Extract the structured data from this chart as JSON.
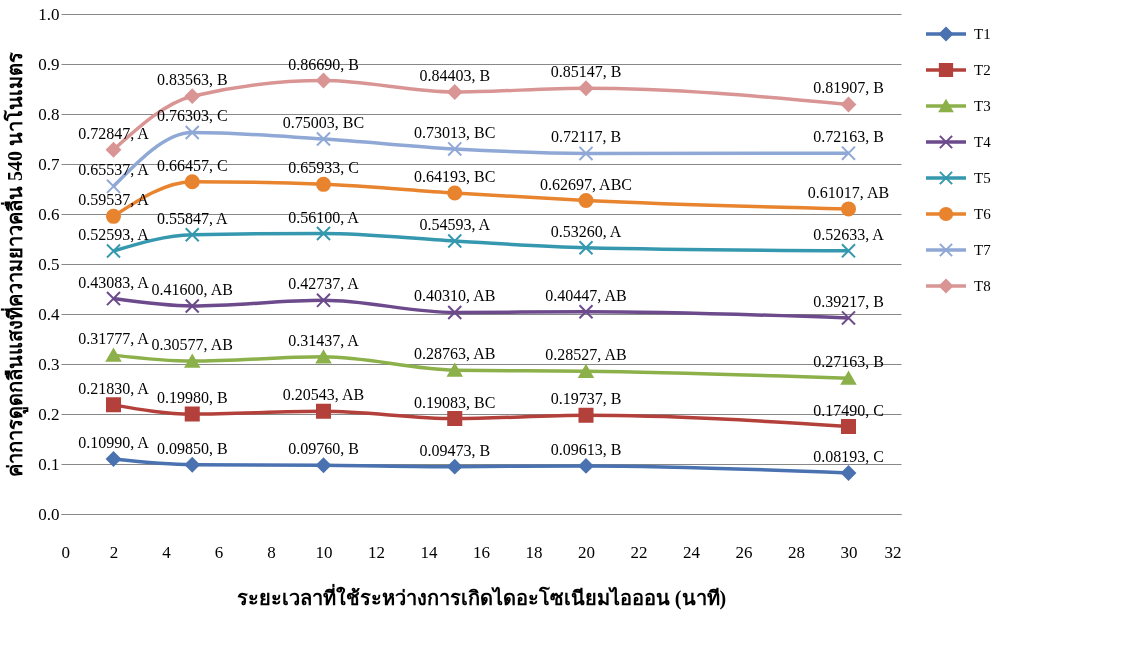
{
  "chart_data": {
    "type": "line",
    "xlabel": "ระยะเวลาที่ใช้ระหว่างการเกิดไดอะโซเนียมไอออน (นาที)",
    "ylabel": "ค่าการดูดกลืนแสงที่ความยาวคลื่น 540 นาโนเมตร",
    "x": [
      2,
      5,
      10,
      15,
      20,
      30
    ],
    "xlim": [
      0,
      32
    ],
    "xticks": [
      0,
      2,
      4,
      6,
      8,
      10,
      12,
      14,
      16,
      18,
      20,
      22,
      24,
      26,
      28,
      30,
      32
    ],
    "ylim": [
      0,
      1
    ],
    "yticks": [
      {
        "value": 0,
        "label": "0.0"
      },
      0.1,
      0.2,
      0.3,
      0.4,
      0.5,
      0.6,
      0.7,
      0.8,
      0.9,
      {
        "value": 1,
        "label": "1.0"
      }
    ],
    "grid": "y",
    "legend": "right",
    "line_style": "solid",
    "series": [
      {
        "name": "T1",
        "color": "#4a72b0",
        "marker": "diamond",
        "values": [
          0.1099,
          0.0985,
          0.0976,
          0.09473,
          0.09613,
          0.08193
        ],
        "value_labels": [
          "0.10990, A",
          "0.09850, B",
          "0.09760, B",
          "0.09473, B",
          "0.09613, B",
          "0.08193, C"
        ]
      },
      {
        "name": "T2",
        "color": "#b3403a",
        "marker": "square",
        "values": [
          0.2183,
          0.1998,
          0.20543,
          0.19083,
          0.19737,
          0.1749
        ],
        "value_labels": [
          "0.21830, A",
          "0.19980, B",
          "0.20543, AB",
          "0.19083, BC",
          "0.19737, B",
          "0.17490, C"
        ]
      },
      {
        "name": "T3",
        "color": "#8cb04a",
        "marker": "triangle",
        "values": [
          0.31777,
          0.30577,
          0.31437,
          0.28763,
          0.28527,
          0.27163
        ],
        "value_labels": [
          "0.31777, A",
          "0.30577, AB",
          "0.31437, A",
          "0.28763, AB",
          "0.28527, AB",
          "0.27163, B"
        ]
      },
      {
        "name": "T4",
        "color": "#6c4a8c",
        "marker": "cross",
        "values": [
          0.43083,
          0.416,
          0.42737,
          0.4031,
          0.40447,
          0.39217
        ],
        "value_labels": [
          "0.43083, A",
          "0.41600, AB",
          "0.42737, A",
          "0.40310, AB",
          "0.40447, AB",
          "0.39217, B"
        ]
      },
      {
        "name": "T5",
        "color": "#3598ae",
        "marker": "cross",
        "values": [
          0.52593,
          0.55847,
          0.561,
          0.54593,
          0.5326,
          0.52633
        ],
        "value_labels": [
          "0.52593, A",
          "0.55847, A",
          "0.56100, A",
          "0.54593, A",
          "0.53260, A",
          "0.52633, A"
        ]
      },
      {
        "name": "T6",
        "color": "#e8832e",
        "marker": "circle",
        "values": [
          0.59537,
          0.66457,
          0.65933,
          0.64193,
          0.62697,
          0.61017
        ],
        "value_labels": [
          "0.59537, A",
          "0.66457, C",
          "0.65933, C",
          "0.64193, BC",
          "0.62697, ABC",
          "0.61017, AB"
        ]
      },
      {
        "name": "T7",
        "color": "#8fa8d6",
        "marker": "cross",
        "values": [
          0.65537,
          0.76303,
          0.75003,
          0.73013,
          0.72117,
          0.72163
        ],
        "value_labels": [
          "0.65537, A",
          "0.76303, C",
          "0.75003, BC",
          "0.73013, BC",
          "0.72117, B",
          "0.72163, B"
        ]
      },
      {
        "name": "T8",
        "color": "#d99594",
        "marker": "diamond",
        "values": [
          0.72847,
          0.83563,
          0.8669,
          0.84403,
          0.85147,
          0.81907
        ],
        "value_labels": [
          "0.72847, A",
          "0.83563, B",
          "0.86690, B",
          "0.84403, B",
          "0.85147, B",
          "0.81907, B"
        ]
      }
    ]
  }
}
